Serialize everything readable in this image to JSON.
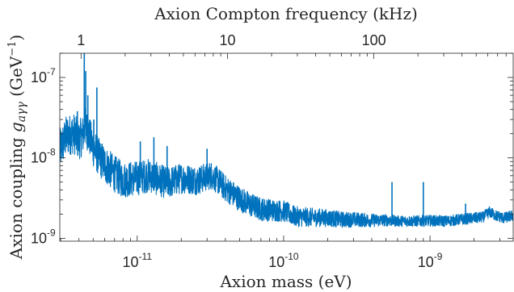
{
  "chart_data": {
    "type": "line",
    "title": "",
    "xlabel": "Axion mass (eV)",
    "ylabel": "Axion coupling g_aγγ (GeV⁻¹)",
    "ylabel_parts": {
      "prefix": "Axion coupling ",
      "symbol": "g",
      "subscript": "aγγ",
      "unit_open": " (GeV",
      "unit_exp": "−1",
      "unit_close": ")"
    },
    "top_xlabel": "Axion Compton frequency (kHz)",
    "x_scale": "log",
    "y_scale": "log",
    "xlim": [
      2.96e-12,
      3.7e-09
    ],
    "ylim": [
      9.2e-10,
      2e-07
    ],
    "x_ticks": [
      {
        "value": 1e-11,
        "mantissa": "10",
        "exponent": "-11"
      },
      {
        "value": 1e-10,
        "mantissa": "10",
        "exponent": "-10"
      },
      {
        "value": 1e-09,
        "mantissa": "10",
        "exponent": "-9"
      }
    ],
    "y_ticks": [
      {
        "value": 1e-09,
        "mantissa": "10",
        "exponent": "-9"
      },
      {
        "value": 1e-08,
        "mantissa": "10",
        "exponent": "-8"
      },
      {
        "value": 1e-07,
        "mantissa": "10",
        "exponent": "-7"
      }
    ],
    "top_ticks": [
      {
        "value": 1,
        "label": "1"
      },
      {
        "value": 10,
        "label": "10"
      },
      {
        "value": 100,
        "label": "100"
      }
    ],
    "grid": false,
    "legend": "none",
    "series": [
      {
        "color": "#0072BD",
        "envelope": {
          "x": [
            2.96e-12,
            3.3e-12,
            3.7e-12,
            4e-12,
            4.25e-12,
            4.4e-12,
            4.6e-12,
            5e-12,
            5.5e-12,
            6e-12,
            7e-12,
            8e-12,
            9e-12,
            1e-11,
            1.2e-11,
            1.4e-11,
            1.6e-11,
            1.8e-11,
            2e-11,
            2.3e-11,
            2.6e-11,
            2.9e-11,
            3.2e-11,
            3.6e-11,
            4e-11,
            5e-11,
            6e-11,
            7e-11,
            8.5e-11,
            1e-10,
            1.2e-10,
            1.5e-10,
            2e-10,
            2.5e-10,
            3e-10,
            4e-10,
            5e-10,
            6e-10,
            7e-10,
            8e-10,
            1e-09,
            1.3e-09,
            1.6e-09,
            2e-09,
            2.3e-09,
            2.55e-09,
            2.8e-09,
            3.2e-09,
            3.7e-09
          ],
          "y": [
            1.45e-08,
            2.2e-08,
            2.3e-08,
            1.9e-08,
            2.2e-08,
            2.8e-08,
            2.4e-08,
            1.55e-08,
            1.15e-08,
            9.5e-09,
            7.2e-09,
            6e-09,
            6.2e-09,
            6.3e-09,
            6.8e-09,
            6e-09,
            5.4e-09,
            5.8e-09,
            6.2e-09,
            6e-09,
            5.8e-09,
            6.3e-09,
            6.7e-09,
            5.6e-09,
            4.6e-09,
            3.4e-09,
            2.8e-09,
            2.5e-09,
            2.4e-09,
            2.35e-09,
            2e-09,
            1.95e-09,
            1.9e-09,
            1.8e-09,
            1.8e-09,
            1.75e-09,
            1.75e-09,
            1.7e-09,
            1.7e-09,
            1.7e-09,
            1.72e-09,
            1.7e-09,
            1.78e-09,
            1.85e-09,
            1.9e-09,
            2.2e-09,
            2e-09,
            1.85e-09,
            2e-09
          ]
        },
        "spikes": [
          {
            "x": 4.35e-12,
            "y": 2e-07
          },
          {
            "x": 4.45e-12,
            "y": 1.2e-07
          },
          {
            "x": 4.6e-12,
            "y": 6e-08
          },
          {
            "x": 5.3e-12,
            "y": 7.5e-08
          },
          {
            "x": 5.05e-12,
            "y": 3e-08
          },
          {
            "x": 3.9e-12,
            "y": 3.8e-08
          },
          {
            "x": 1.3e-11,
            "y": 1.8e-08
          },
          {
            "x": 1.05e-11,
            "y": 1.6e-08
          },
          {
            "x": 1.6e-11,
            "y": 1.4e-08
          },
          {
            "x": 3e-11,
            "y": 1.3e-08
          },
          {
            "x": 5.5e-10,
            "y": 5e-09
          },
          {
            "x": 9e-10,
            "y": 5e-09
          },
          {
            "x": 1.75e-09,
            "y": 2.7e-09
          },
          {
            "x": 2.55e-09,
            "y": 2.4e-09
          }
        ]
      }
    ]
  }
}
